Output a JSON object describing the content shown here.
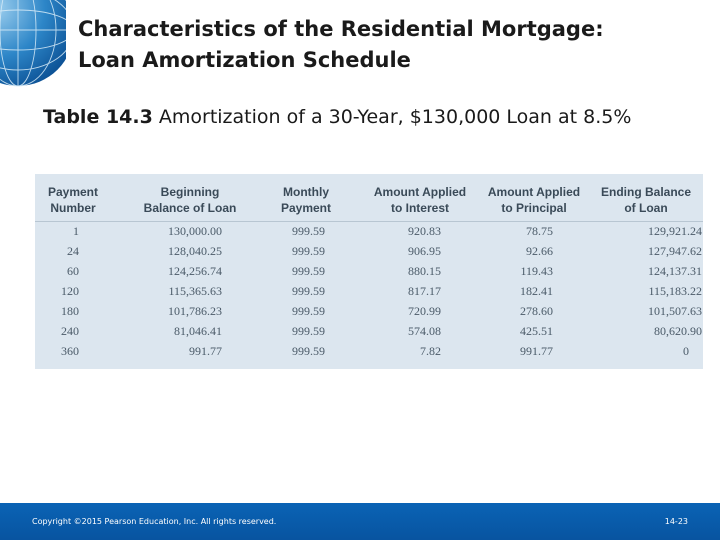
{
  "slide": {
    "title_line1": "Characteristics of the Residential Mortgage:",
    "title_line2": "Loan Amortization Schedule",
    "table_number": "Table 14.3",
    "table_caption": "Amortization of a 30-Year, $130,000 Loan at 8.5%"
  },
  "table": {
    "headers": [
      [
        "Payment",
        "Number"
      ],
      [
        "Beginning",
        "Balance of Loan"
      ],
      [
        "Monthly",
        "Payment"
      ],
      [
        "Amount Applied",
        "to Interest"
      ],
      [
        "Amount Applied",
        "to Principal"
      ],
      [
        "Ending Balance",
        "of Loan"
      ]
    ],
    "rows": [
      [
        "1",
        "130,000.00",
        "999.59",
        "920.83",
        "78.75",
        "129,921.24"
      ],
      [
        "24",
        "128,040.25",
        "999.59",
        "906.95",
        "92.66",
        "127,947.62"
      ],
      [
        "60",
        "124,256.74",
        "999.59",
        "880.15",
        "119.43",
        "124,137.31"
      ],
      [
        "120",
        "115,365.63",
        "999.59",
        "817.17",
        "182.41",
        "115,183.22"
      ],
      [
        "180",
        "101,786.23",
        "999.59",
        "720.99",
        "278.60",
        "101,507.63"
      ],
      [
        "240",
        "81,046.41",
        "999.59",
        "574.08",
        "425.51",
        "80,620.90"
      ],
      [
        "360",
        "991.77",
        "999.59",
        "7.82",
        "991.77",
        "0"
      ]
    ]
  },
  "footer": {
    "copyright": "Copyright ©2015 Pearson Education, Inc. All rights reserved.",
    "page_number": "14-23"
  },
  "colors": {
    "footer_bar": "#0a5aab",
    "table_background": "#dce6ef",
    "header_text": "#3a4a58"
  },
  "icons": {
    "decoration": "globe-icon"
  }
}
